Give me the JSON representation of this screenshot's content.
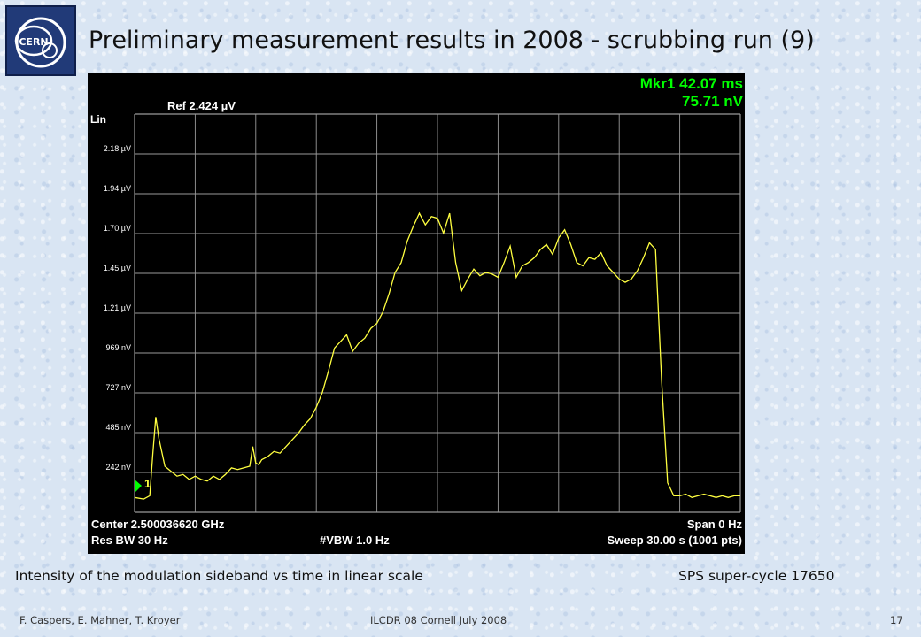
{
  "slide": {
    "title": "Preliminary measurement results in 2008 - scrubbing run (9)",
    "logo_text": "CERN",
    "caption_left": "Intensity of the modulation sideband vs time in linear scale",
    "caption_right": "SPS super-cycle 17650",
    "footer_authors": "F. Caspers, E. Mahner, T. Kroyer",
    "footer_event": "ILCDR 08 Cornell July 2008",
    "footer_page": "17"
  },
  "analyzer": {
    "ref_level": "Ref 2.424 µV",
    "scale": "Lin",
    "marker_line1": "Mkr1 42.07 ms",
    "marker_line2": "75.71 nV",
    "marker_label": "1",
    "center": "Center 2.500036620 GHz",
    "span": "Span 0 Hz",
    "res_bw": "Res BW 30 Hz",
    "vbw": "#VBW 1.0 Hz",
    "sweep": "Sweep  30.00 s (1001 pts)",
    "y_ticks": [
      "2.18 µV",
      "1.94 µV",
      "1.70 µV",
      "1.45 µV",
      "1.21 µV",
      "969 nV",
      "727 nV",
      "485 nV",
      "242 nV"
    ],
    "colors": {
      "trace": "#ffff40",
      "marker": "#00ff00",
      "grid": "#9a9a9a",
      "text": "#ffffff"
    }
  },
  "chart_data": {
    "type": "line",
    "xlim": [
      0,
      30
    ],
    "xunit": "s",
    "ylim": [
      0,
      2.424
    ],
    "yunit": "µV",
    "series": [
      {
        "x": [
          0,
          0.45,
          0.75,
          0.9,
          1.05,
          1.2,
          1.5,
          1.8,
          2.1,
          2.4,
          2.7,
          3.0,
          3.3,
          3.6,
          3.9,
          4.2,
          4.5,
          4.8,
          5.1,
          5.4,
          5.7,
          5.85,
          6.0,
          6.15,
          6.3,
          6.6,
          6.9,
          7.2,
          7.5,
          7.8,
          8.1,
          8.4,
          8.7,
          9.0,
          9.3,
          9.6,
          9.9,
          10.2,
          10.5,
          10.8,
          11.1,
          11.4,
          11.7,
          12.0,
          12.3,
          12.6,
          12.9,
          13.2,
          13.5,
          13.8,
          14.1,
          14.4,
          14.7,
          15.0,
          15.3,
          15.6,
          15.9,
          16.2,
          16.5,
          16.8,
          17.1,
          17.4,
          17.7,
          18.0,
          18.3,
          18.6,
          18.9,
          19.2,
          19.5,
          19.8,
          20.1,
          20.4,
          20.7,
          21.0,
          21.3,
          21.6,
          21.9,
          22.2,
          22.5,
          22.8,
          23.1,
          23.4,
          23.7,
          24.0,
          24.3,
          24.6,
          24.9,
          25.2,
          25.5,
          25.8,
          26.1,
          26.4,
          26.7,
          27.0,
          27.3,
          27.6,
          27.9,
          28.2,
          28.5,
          28.8,
          29.1,
          29.4,
          29.7,
          30.0
        ],
        "y": [
          0.09,
          0.08,
          0.1,
          0.35,
          0.58,
          0.45,
          0.28,
          0.25,
          0.22,
          0.23,
          0.2,
          0.22,
          0.2,
          0.19,
          0.22,
          0.2,
          0.23,
          0.27,
          0.26,
          0.27,
          0.28,
          0.4,
          0.3,
          0.29,
          0.32,
          0.34,
          0.37,
          0.36,
          0.4,
          0.44,
          0.48,
          0.53,
          0.57,
          0.64,
          0.73,
          0.86,
          1.0,
          1.04,
          1.08,
          0.98,
          1.03,
          1.06,
          1.12,
          1.15,
          1.22,
          1.33,
          1.46,
          1.52,
          1.65,
          1.74,
          1.82,
          1.75,
          1.8,
          1.79,
          1.7,
          1.82,
          1.52,
          1.35,
          1.42,
          1.48,
          1.44,
          1.46,
          1.45,
          1.43,
          1.52,
          1.62,
          1.43,
          1.5,
          1.52,
          1.55,
          1.6,
          1.63,
          1.57,
          1.67,
          1.72,
          1.63,
          1.52,
          1.5,
          1.55,
          1.54,
          1.58,
          1.5,
          1.46,
          1.42,
          1.4,
          1.42,
          1.47,
          1.55,
          1.64,
          1.6,
          0.8,
          0.18,
          0.1,
          0.1,
          0.11,
          0.09,
          0.1,
          0.11,
          0.1,
          0.09,
          0.1,
          0.09,
          0.1,
          0.1
        ]
      }
    ],
    "marker": {
      "x": 0.04,
      "y": 0.07571
    },
    "grid": true
  }
}
